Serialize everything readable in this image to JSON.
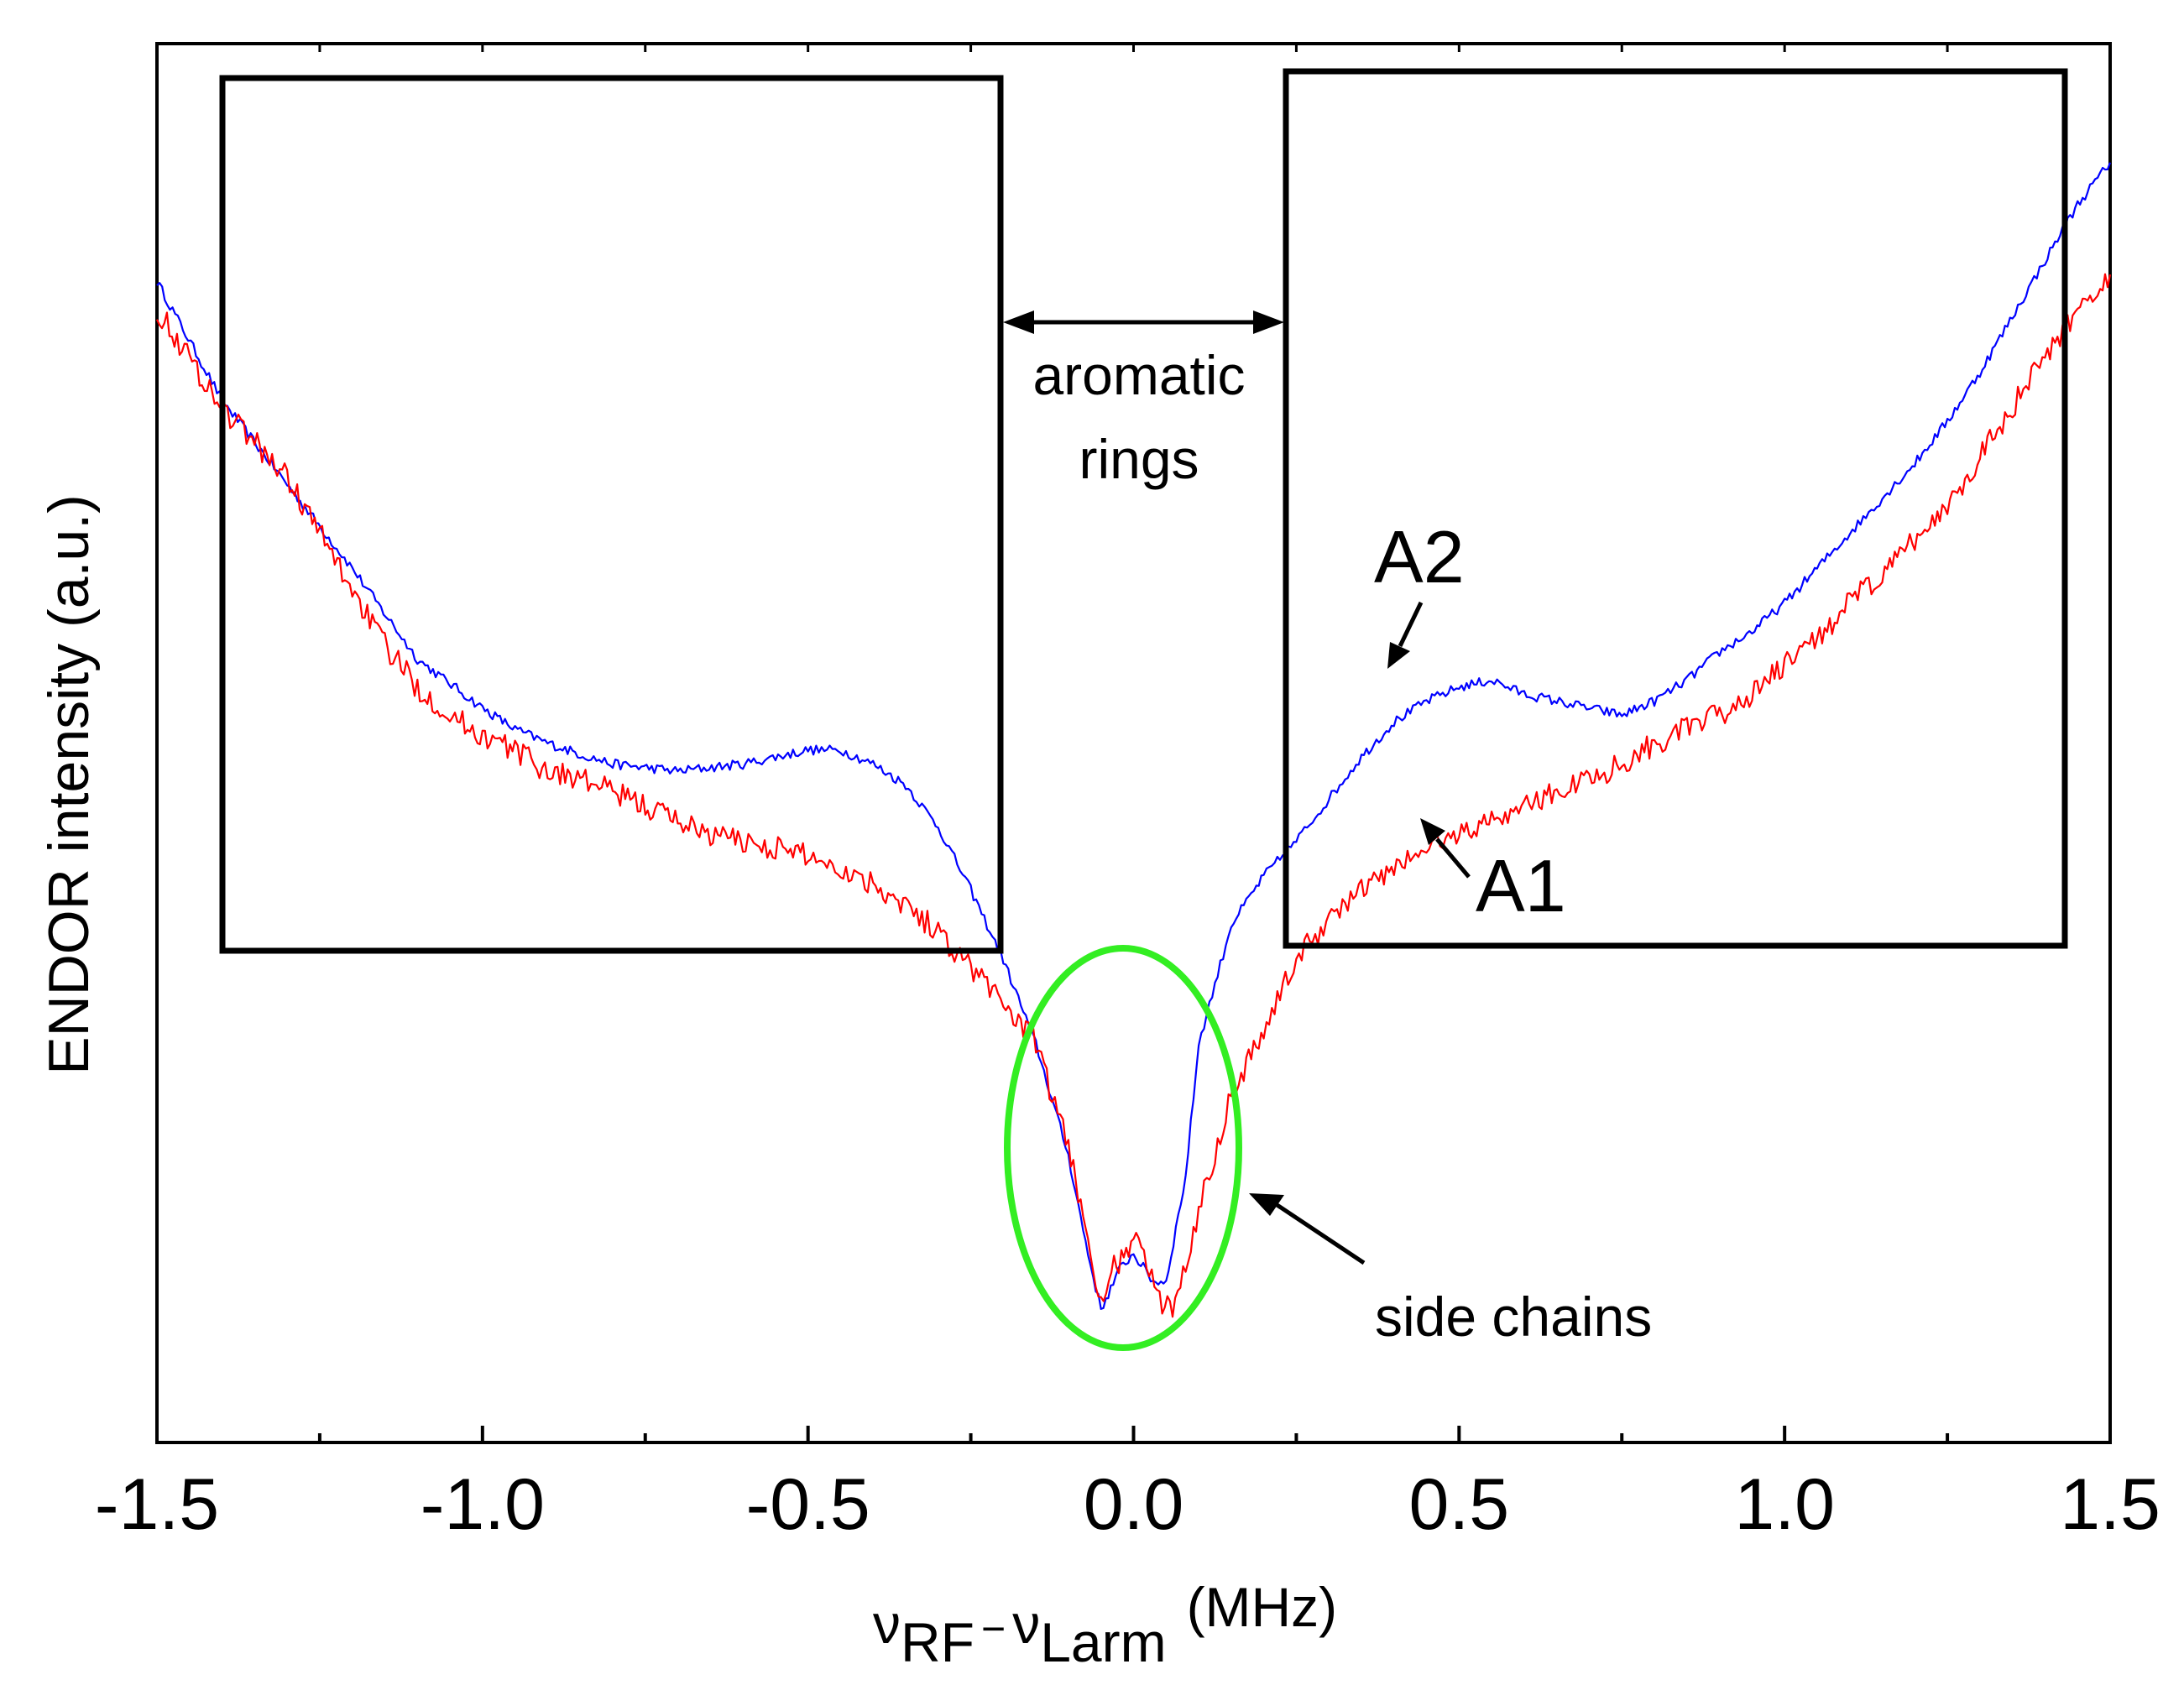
{
  "chart_data": {
    "type": "line",
    "xlabel": {
      "nu1": "ν",
      "sub1": "RF",
      "minus": "−",
      "nu2": "ν",
      "sub2": "Larm",
      "unit": "(MHz)"
    },
    "ylabel": "ENDOR intensity (a.u.)",
    "xlim": [
      -1.5,
      1.5
    ],
    "ylim": [
      0,
      10
    ],
    "x_major_ticks": [
      -1.5,
      -1.0,
      -0.5,
      0.0,
      0.5,
      1.0,
      1.5
    ],
    "x_tick_labels": [
      "-1.5",
      "-1.0",
      "-0.5",
      "0.0",
      "0.5",
      "1.0",
      "1.5"
    ],
    "x_minor_ticks": [
      -1.25,
      -0.75,
      -0.25,
      0.25,
      0.75,
      1.25
    ],
    "y_ticks_shown": false,
    "series": [
      {
        "name": "A2",
        "color": "#0000ff",
        "x": [
          -1.5,
          -1.4,
          -1.3,
          -1.2,
          -1.1,
          -1.0,
          -0.95,
          -0.9,
          -0.85,
          -0.8,
          -0.7,
          -0.6,
          -0.55,
          -0.5,
          -0.45,
          -0.4,
          -0.35,
          -0.3,
          -0.25,
          -0.2,
          -0.15,
          -0.1,
          -0.07,
          -0.05,
          -0.02,
          0.0,
          0.03,
          0.05,
          0.08,
          0.1,
          0.15,
          0.2,
          0.25,
          0.3,
          0.35,
          0.4,
          0.45,
          0.5,
          0.55,
          0.6,
          0.65,
          0.7,
          0.75,
          0.8,
          0.85,
          0.9,
          0.95,
          1.0,
          1.05,
          1.1,
          1.15,
          1.2,
          1.25,
          1.3,
          1.35,
          1.4,
          1.45,
          1.5
        ],
        "y": [
          8.3,
          7.45,
          6.85,
          6.25,
          5.6,
          5.25,
          5.1,
          5.0,
          4.92,
          4.85,
          4.8,
          4.85,
          4.9,
          4.95,
          4.95,
          4.85,
          4.7,
          4.4,
          3.95,
          3.45,
          2.85,
          2.05,
          1.35,
          0.95,
          1.25,
          1.35,
          1.15,
          1.15,
          1.9,
          2.85,
          3.7,
          4.05,
          4.3,
          4.6,
          4.9,
          5.15,
          5.3,
          5.4,
          5.45,
          5.35,
          5.3,
          5.25,
          5.2,
          5.3,
          5.45,
          5.65,
          5.8,
          6.0,
          6.25,
          6.5,
          6.75,
          7.0,
          7.3,
          7.65,
          8.05,
          8.45,
          8.85,
          9.15
        ]
      },
      {
        "name": "A1",
        "color": "#ff0000",
        "x": [
          -1.5,
          -1.45,
          -1.4,
          -1.35,
          -1.3,
          -1.25,
          -1.2,
          -1.15,
          -1.1,
          -1.05,
          -1.0,
          -0.95,
          -0.9,
          -0.85,
          -0.8,
          -0.75,
          -0.7,
          -0.65,
          -0.6,
          -0.55,
          -0.5,
          -0.45,
          -0.4,
          -0.35,
          -0.3,
          -0.25,
          -0.2,
          -0.15,
          -0.1,
          -0.07,
          -0.05,
          -0.03,
          0.0,
          0.02,
          0.04,
          0.06,
          0.1,
          0.15,
          0.2,
          0.25,
          0.3,
          0.35,
          0.4,
          0.45,
          0.5,
          0.55,
          0.6,
          0.65,
          0.7,
          0.75,
          0.8,
          0.85,
          0.9,
          0.95,
          1.0,
          1.05,
          1.1,
          1.15,
          1.2,
          1.25,
          1.3,
          1.35,
          1.4,
          1.45,
          1.5
        ],
        "y": [
          8.1,
          7.75,
          7.4,
          7.15,
          6.9,
          6.5,
          6.1,
          5.7,
          5.4,
          5.2,
          5.05,
          4.95,
          4.8,
          4.75,
          4.65,
          4.55,
          4.45,
          4.35,
          4.3,
          4.25,
          4.2,
          4.1,
          4.0,
          3.85,
          3.65,
          3.4,
          3.15,
          2.85,
          2.1,
          1.5,
          0.95,
          1.25,
          1.45,
          1.3,
          1.0,
          0.95,
          1.65,
          2.5,
          2.95,
          3.45,
          3.75,
          3.95,
          4.1,
          4.25,
          4.35,
          4.45,
          4.55,
          4.65,
          4.75,
          4.85,
          5.0,
          5.1,
          5.2,
          5.35,
          5.55,
          5.75,
          6.0,
          6.2,
          6.45,
          6.7,
          7.05,
          7.4,
          7.75,
          8.1,
          8.35
        ]
      }
    ],
    "annotations": {
      "aromatic": [
        "aromatic",
        "rings"
      ],
      "side_chains": "side chains",
      "label_a1": "A1",
      "label_a2": "A2"
    },
    "colors": {
      "highlight_ellipse": "#33ee22",
      "boxes": "#000000",
      "axes": "#000000"
    }
  }
}
